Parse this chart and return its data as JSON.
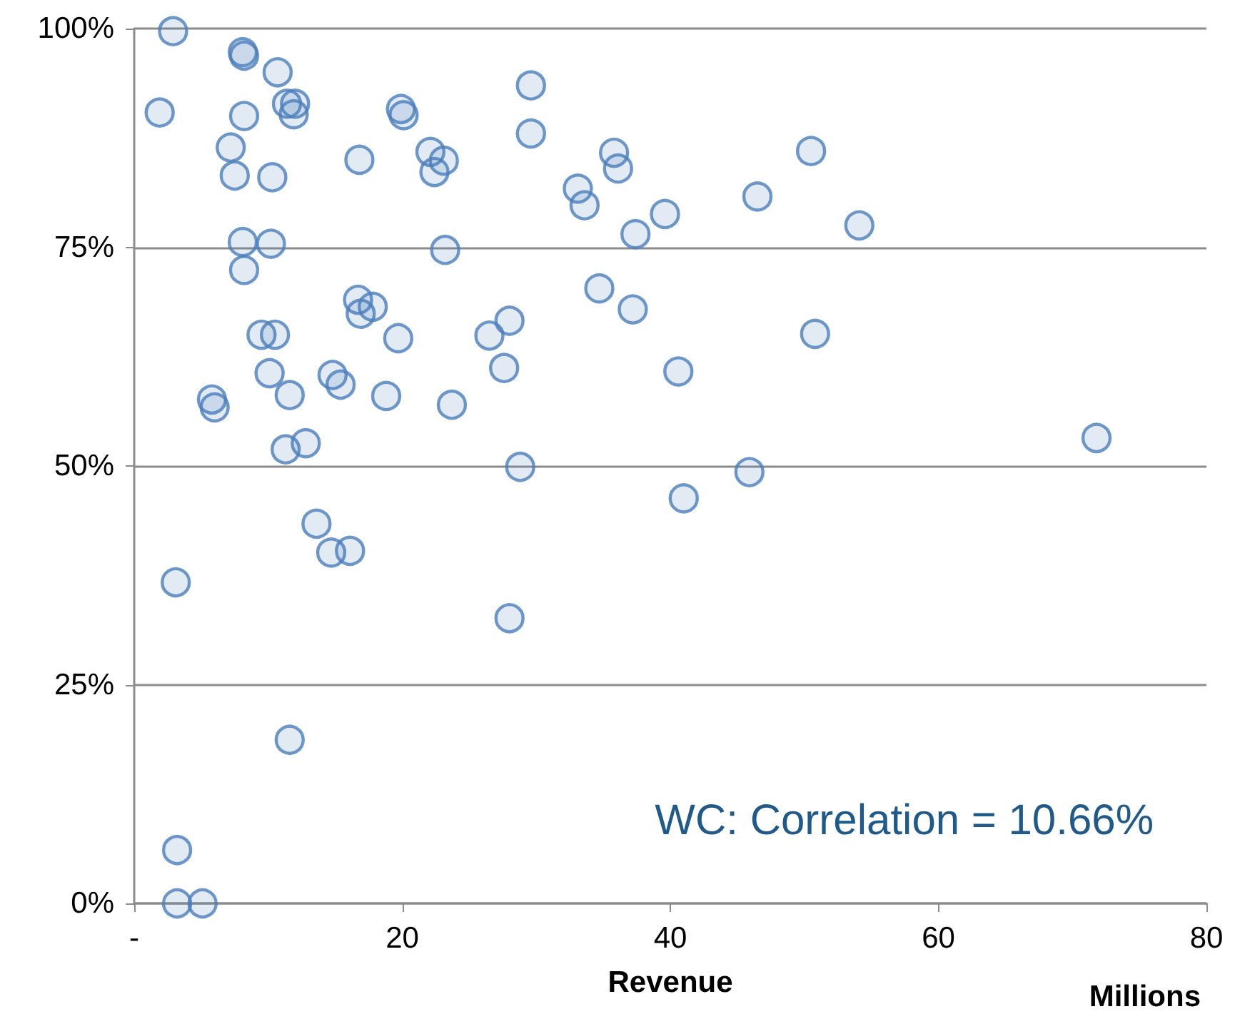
{
  "chart_data": {
    "type": "scatter",
    "xlabel": "Revenue",
    "annotations": [
      "WC: Correlation = 10.66%",
      "Millions"
    ],
    "xlim": [
      0,
      80
    ],
    "xticks": [
      {
        "value": 0,
        "label": "-"
      },
      20,
      40,
      60,
      80
    ],
    "ylim": [
      0,
      100
    ],
    "yticks": [
      {
        "value": 0,
        "label": "0%"
      },
      {
        "value": 25,
        "label": "25%"
      },
      {
        "value": 50,
        "label": "50%"
      },
      {
        "value": 75,
        "label": "75%"
      },
      {
        "value": 100,
        "label": "100%"
      }
    ],
    "grid": "y",
    "marker": "circle",
    "series": [
      {
        "color": "#4a7ebb",
        "x": [
          2.9,
          8.1,
          8.2,
          10.7,
          1.9,
          8.2,
          11.4,
          12.0,
          11.9,
          19.9,
          20.1,
          7.2,
          7.5,
          10.3,
          16.8,
          22.1,
          23.1,
          22.4,
          8.1,
          10.2,
          8.2,
          23.2,
          16.7,
          17.8,
          16.9,
          9.5,
          10.5,
          19.7,
          26.5,
          28.0,
          10.1,
          14.8,
          15.4,
          11.6,
          18.8,
          23.7,
          27.6,
          5.8,
          6.0,
          11.3,
          12.8,
          13.6,
          14.7,
          16.1,
          3.1,
          11.6,
          3.2,
          3.2,
          5.1,
          28.8,
          28.0,
          29.6,
          29.6,
          33.1,
          33.6,
          35.8,
          36.1,
          37.4,
          39.6,
          34.7,
          37.2,
          40.6,
          41.0,
          45.9,
          46.5,
          50.5,
          50.8,
          54.1,
          71.8
        ],
        "values": [
          99.7,
          97.3,
          96.9,
          95.0,
          90.4,
          90.0,
          91.4,
          91.4,
          90.2,
          90.8,
          90.1,
          86.4,
          83.2,
          83.0,
          85.0,
          85.9,
          84.9,
          83.6,
          75.6,
          75.4,
          72.4,
          74.7,
          69.0,
          68.2,
          67.4,
          65.0,
          65.0,
          64.6,
          64.9,
          66.6,
          60.6,
          60.4,
          59.3,
          58.1,
          58.0,
          57.0,
          61.2,
          57.6,
          56.7,
          51.9,
          52.6,
          43.4,
          40.1,
          40.3,
          36.7,
          18.7,
          6.1,
          0,
          0,
          49.9,
          32.6,
          88.0,
          93.5,
          81.7,
          79.8,
          85.8,
          84.0,
          76.5,
          78.8,
          70.3,
          67.9,
          60.8,
          46.3,
          49.3,
          80.8,
          86.0,
          65.1,
          77.5,
          53.2
        ]
      }
    ]
  }
}
